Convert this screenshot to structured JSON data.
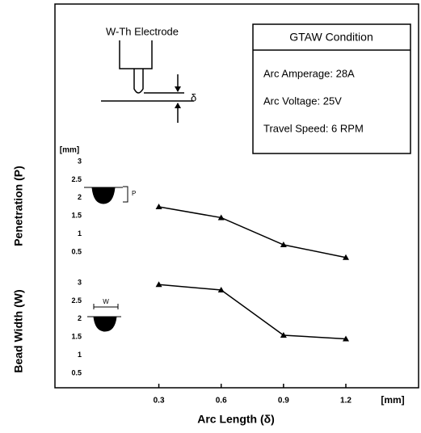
{
  "chart_data": {
    "type": "line",
    "xlabel": "Arc Length (δ)",
    "x_unit": "[mm]",
    "y_unit": "[mm]",
    "x": [
      0.3,
      0.6,
      0.9,
      1.2
    ],
    "xlim": [
      -0.2,
      1.55
    ],
    "xticks": [
      0.3,
      0.6,
      0.9,
      1.2
    ],
    "series": [
      {
        "name": "Penetration (P)",
        "color": "#000000",
        "values": [
          1.75,
          1.45,
          0.7,
          0.35
        ],
        "ylim": [
          0.5,
          3.0
        ],
        "yticks": [
          0.5,
          1.0,
          1.5,
          2.0,
          2.5,
          3.0
        ]
      },
      {
        "name": "Bead Width (W)",
        "color": "#000000",
        "values": [
          2.95,
          2.8,
          1.55,
          1.45
        ],
        "ylim": [
          0.5,
          3.0
        ],
        "yticks": [
          0.5,
          1.0,
          1.5,
          2.0,
          2.5,
          3.0
        ]
      }
    ],
    "diagram": {
      "electrode": "W-Th Electrode",
      "gap": "δ",
      "p_mark": "P",
      "w_mark": "W"
    },
    "conditions": {
      "title": "GTAW Condition",
      "items": [
        "Arc Amperage: 28A",
        "Arc Voltage: 25V",
        "Travel Speed: 6 RPM"
      ]
    }
  }
}
